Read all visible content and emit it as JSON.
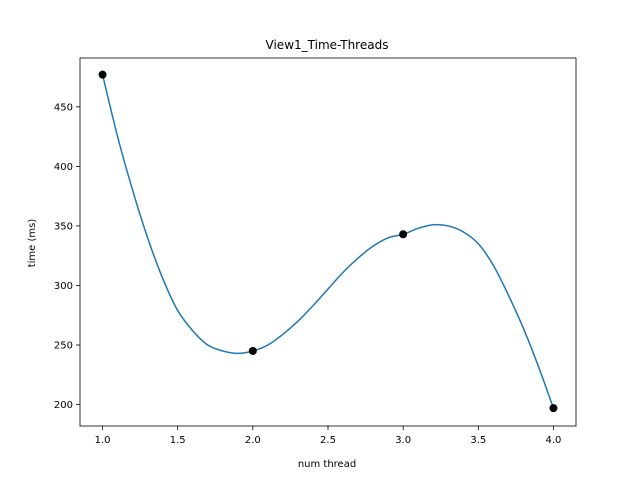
{
  "chart_data": {
    "type": "line",
    "title": "View1_Time-Threads",
    "xlabel": "num thread",
    "ylabel": "time (ms)",
    "xlim": [
      0.85,
      4.15
    ],
    "ylim": [
      182,
      491
    ],
    "x_ticks": [
      1.0,
      1.5,
      2.0,
      2.5,
      3.0,
      3.5,
      4.0
    ],
    "x_tick_labels": [
      "1.0",
      "1.5",
      "2.0",
      "2.5",
      "3.0",
      "3.5",
      "4.0"
    ],
    "y_ticks": [
      200,
      250,
      300,
      350,
      400,
      450
    ],
    "y_tick_labels": [
      "200",
      "250",
      "300",
      "350",
      "400",
      "450"
    ],
    "grid": false,
    "legend": "none",
    "series": [
      {
        "style": "smooth-curve",
        "color": "#1f77b4",
        "x": [
          1.0,
          1.1,
          1.2,
          1.3,
          1.4,
          1.5,
          1.6,
          1.7,
          1.8,
          1.9,
          2.0,
          2.1,
          2.2,
          2.3,
          2.4,
          2.5,
          2.6,
          2.7,
          2.8,
          2.9,
          3.0,
          3.1,
          3.2,
          3.3,
          3.4,
          3.5,
          3.6,
          3.7,
          3.8,
          3.9,
          4.0
        ],
        "values": [
          477,
          425,
          380,
          340,
          306,
          279,
          262,
          250,
          245,
          243,
          245,
          250,
          259,
          270,
          283,
          297,
          311,
          323,
          333,
          340,
          343,
          348,
          351,
          350,
          345,
          335,
          317,
          292,
          264,
          232,
          197
        ]
      },
      {
        "style": "markers",
        "color": "#000000",
        "x": [
          1.0,
          2.0,
          3.0,
          4.0
        ],
        "values": [
          477,
          245,
          343,
          197
        ]
      }
    ]
  }
}
